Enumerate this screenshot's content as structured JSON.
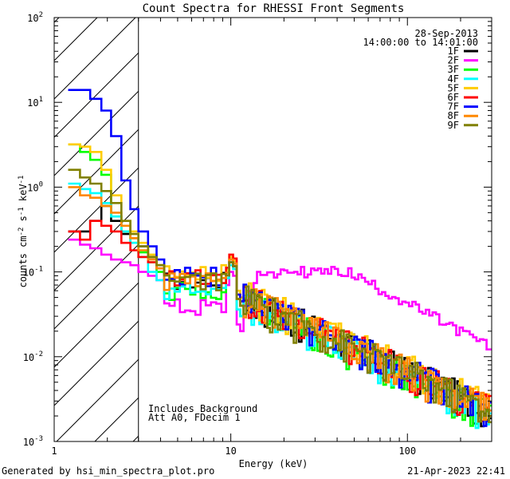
{
  "chart_data": {
    "type": "line",
    "title": "Count Spectra for RHESSI Front Segments",
    "xlabel": "Energy (keV)",
    "ylabel": "counts cm^-2 s^-1 keV^-1",
    "xscale": "log",
    "yscale": "log",
    "xlim": [
      1,
      300
    ],
    "ylim": [
      0.001,
      100
    ],
    "x_ticks": [
      {
        "v": 1,
        "label": "1"
      },
      {
        "v": 10,
        "label": "10"
      },
      {
        "v": 100,
        "label": "100"
      }
    ],
    "y_ticks": [
      {
        "v": 0.001,
        "label": "10^-3"
      },
      {
        "v": 0.01,
        "label": "10^-2"
      },
      {
        "v": 0.1,
        "label": "10^-1"
      },
      {
        "v": 1,
        "label": "10^0"
      },
      {
        "v": 10,
        "label": "10^1"
      },
      {
        "v": 100,
        "label": "10^2"
      }
    ],
    "excluded_region": [
      1,
      3
    ],
    "date": "28-Sep-2013",
    "time_range": "14:00:00 to 14:01:00",
    "annotations": [
      "Includes Background",
      "Att A0, FDecim 1"
    ],
    "series": [
      {
        "name": "1F",
        "color": "#000000",
        "low": [
          0.3,
          0.3,
          0.4,
          0.6,
          0.4,
          0.28,
          0.25,
          0.2,
          0.15,
          0.12
        ],
        "mid": 0.08,
        "peak": 0.14,
        "tail": 0.05
      },
      {
        "name": "2F",
        "color": "#ff00ff",
        "low": [
          0.24,
          0.21,
          0.19,
          0.16,
          0.14,
          0.13,
          0.12,
          0.1,
          0.09,
          0.08
        ],
        "mid": 0.04,
        "peak": 0.1,
        "tail": 0.1
      },
      {
        "name": "3F",
        "color": "#00ff00",
        "low": [
          3.2,
          2.6,
          2.1,
          1.4,
          0.45,
          0.3,
          0.22,
          0.17,
          0.13,
          0.1
        ],
        "mid": 0.06,
        "peak": 0.13,
        "tail": 0.045
      },
      {
        "name": "4F",
        "color": "#00ffff",
        "low": [
          1.1,
          0.95,
          0.85,
          0.65,
          0.45,
          0.3,
          0.22,
          0.15,
          0.1,
          0.08
        ],
        "mid": 0.06,
        "peak": 0.12,
        "tail": 0.045
      },
      {
        "name": "5F",
        "color": "#ffcc00",
        "low": [
          3.2,
          3.0,
          2.6,
          1.6,
          0.8,
          0.4,
          0.3,
          0.22,
          0.16,
          0.12
        ],
        "mid": 0.1,
        "peak": 0.15,
        "tail": 0.055
      },
      {
        "name": "6F",
        "color": "#ff0000",
        "low": [
          0.3,
          0.24,
          0.4,
          0.35,
          0.3,
          0.22,
          0.18,
          0.15,
          0.13,
          0.11
        ],
        "mid": 0.09,
        "peak": 0.16,
        "tail": 0.05
      },
      {
        "name": "7F",
        "color": "#0000ff",
        "low": [
          14,
          14,
          11,
          8,
          4,
          1.2,
          0.55,
          0.3,
          0.2,
          0.14
        ],
        "mid": 0.09,
        "peak": 0.13,
        "tail": 0.05
      },
      {
        "name": "8F",
        "color": "#ff8800",
        "low": [
          1.0,
          0.8,
          0.75,
          0.6,
          0.5,
          0.35,
          0.25,
          0.18,
          0.14,
          0.11
        ],
        "mid": 0.08,
        "peak": 0.14,
        "tail": 0.05
      },
      {
        "name": "9F",
        "color": "#808000",
        "low": [
          1.6,
          1.3,
          1.1,
          0.9,
          0.65,
          0.4,
          0.28,
          0.2,
          0.15,
          0.12
        ],
        "mid": 0.08,
        "peak": 0.13,
        "tail": 0.048
      }
    ]
  },
  "footer": {
    "generated_by": "Generated by hsi_min_spectra_plot.pro",
    "timestamp": "21-Apr-2023 22:41"
  }
}
